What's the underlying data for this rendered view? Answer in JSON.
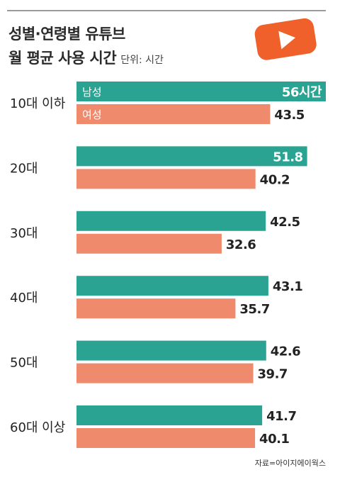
{
  "header": {
    "title_line1": "성별·연령별 유튜브",
    "title_line2": "월 평균 사용 시간",
    "unit": "단위: 시간"
  },
  "source": "자료=아이지에이웍스",
  "icons": {
    "logo": "youtube-play-logo-icon"
  },
  "colors": {
    "male": "#2aa392",
    "female": "#ef8a6c",
    "logo": "#f0602a"
  },
  "chart_data": {
    "type": "bar",
    "orientation": "horizontal",
    "categories": [
      "10대 이하",
      "20대",
      "30대",
      "40대",
      "50대",
      "60대 이상"
    ],
    "series": [
      {
        "name": "남성",
        "values": [
          56,
          51.8,
          42.5,
          43.1,
          42.6,
          41.7
        ]
      },
      {
        "name": "여성",
        "values": [
          43.5,
          40.2,
          32.6,
          35.7,
          39.7,
          40.1
        ]
      }
    ],
    "value_labels": {
      "남성": [
        "56시간",
        "51.8",
        "42.5",
        "43.1",
        "42.6",
        "41.7"
      ],
      "여성": [
        "43.5",
        "40.2",
        "32.6",
        "35.7",
        "39.7",
        "40.1"
      ]
    },
    "xlim": [
      0,
      56
    ],
    "grid": false,
    "legend": "inline in first group bars"
  }
}
